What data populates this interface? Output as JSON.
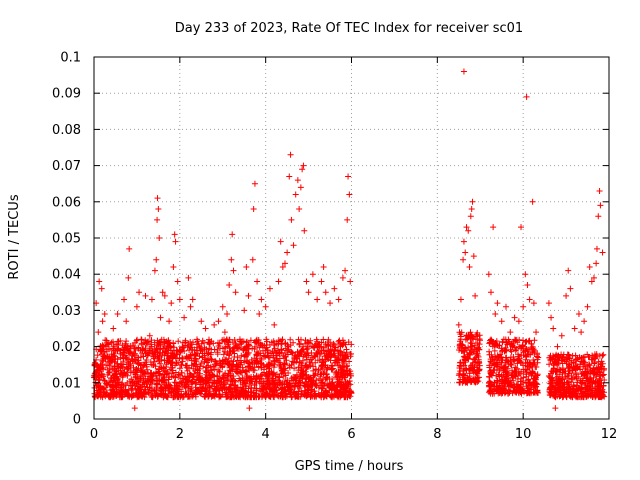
{
  "chart_data": {
    "type": "scatter",
    "title": "Day 233 of 2023, Rate Of TEC Index for receiver sc01",
    "xlabel": "GPS time / hours",
    "ylabel": "ROTI / TECUs",
    "xlim": [
      0,
      12
    ],
    "ylim": [
      0,
      0.1
    ],
    "xticks": [
      "0",
      "2",
      "4",
      "6",
      "8",
      "10",
      "12"
    ],
    "yticks": [
      "0",
      "0.01",
      "0.02",
      "0.03",
      "0.04",
      "0.05",
      "0.06",
      "0.07",
      "0.08",
      "0.09",
      "0.1"
    ],
    "grid": true,
    "marker": "+",
    "colors": {
      "points": "#ff0000",
      "grid": "#a0a0a0",
      "axis": "#000000"
    },
    "series": [
      {
        "name": "sc01",
        "points": [
          [
            0.05,
            0.032
          ],
          [
            0.1,
            0.024
          ],
          [
            0.12,
            0.038
          ],
          [
            0.18,
            0.036
          ],
          [
            0.2,
            0.027
          ],
          [
            0.25,
            0.029
          ],
          [
            0.3,
            0.021
          ],
          [
            0.35,
            0.017
          ],
          [
            0.45,
            0.025
          ],
          [
            0.55,
            0.029
          ],
          [
            0.62,
            0.018
          ],
          [
            0.7,
            0.033
          ],
          [
            0.75,
            0.027
          ],
          [
            0.8,
            0.039
          ],
          [
            0.82,
            0.047
          ],
          [
            0.9,
            0.016
          ],
          [
            0.95,
            0.003
          ],
          [
            1.0,
            0.031
          ],
          [
            1.05,
            0.035
          ],
          [
            1.1,
            0.022
          ],
          [
            1.2,
            0.034
          ],
          [
            1.3,
            0.023
          ],
          [
            1.35,
            0.033
          ],
          [
            1.42,
            0.041
          ],
          [
            1.45,
            0.044
          ],
          [
            1.47,
            0.055
          ],
          [
            1.48,
            0.061
          ],
          [
            1.5,
            0.058
          ],
          [
            1.52,
            0.05
          ],
          [
            1.55,
            0.028
          ],
          [
            1.6,
            0.035
          ],
          [
            1.65,
            0.034
          ],
          [
            1.72,
            0.006
          ],
          [
            1.75,
            0.027
          ],
          [
            1.8,
            0.032
          ],
          [
            1.85,
            0.042
          ],
          [
            1.88,
            0.051
          ],
          [
            1.9,
            0.049
          ],
          [
            1.95,
            0.038
          ],
          [
            2.0,
            0.033
          ],
          [
            2.1,
            0.028
          ],
          [
            2.2,
            0.039
          ],
          [
            2.25,
            0.031
          ],
          [
            2.3,
            0.033
          ],
          [
            2.4,
            0.022
          ],
          [
            2.5,
            0.027
          ],
          [
            2.6,
            0.025
          ],
          [
            2.7,
            0.021
          ],
          [
            2.8,
            0.026
          ],
          [
            2.9,
            0.027
          ],
          [
            3.0,
            0.031
          ],
          [
            3.05,
            0.024
          ],
          [
            3.1,
            0.029
          ],
          [
            3.15,
            0.037
          ],
          [
            3.2,
            0.044
          ],
          [
            3.22,
            0.051
          ],
          [
            3.25,
            0.041
          ],
          [
            3.3,
            0.035
          ],
          [
            3.4,
            0.022
          ],
          [
            3.5,
            0.03
          ],
          [
            3.55,
            0.042
          ],
          [
            3.6,
            0.034
          ],
          [
            3.62,
            0.003
          ],
          [
            3.7,
            0.044
          ],
          [
            3.72,
            0.058
          ],
          [
            3.75,
            0.065
          ],
          [
            3.8,
            0.038
          ],
          [
            3.85,
            0.029
          ],
          [
            3.9,
            0.033
          ],
          [
            4.0,
            0.031
          ],
          [
            4.1,
            0.036
          ],
          [
            4.2,
            0.026
          ],
          [
            4.3,
            0.038
          ],
          [
            4.35,
            0.049
          ],
          [
            4.4,
            0.042
          ],
          [
            4.45,
            0.043
          ],
          [
            4.5,
            0.046
          ],
          [
            4.55,
            0.067
          ],
          [
            4.58,
            0.073
          ],
          [
            4.6,
            0.055
          ],
          [
            4.65,
            0.048
          ],
          [
            4.7,
            0.062
          ],
          [
            4.75,
            0.066
          ],
          [
            4.78,
            0.058
          ],
          [
            4.82,
            0.064
          ],
          [
            4.85,
            0.069
          ],
          [
            4.88,
            0.07
          ],
          [
            4.9,
            0.052
          ],
          [
            4.95,
            0.038
          ],
          [
            5.0,
            0.035
          ],
          [
            5.1,
            0.04
          ],
          [
            5.2,
            0.033
          ],
          [
            5.3,
            0.038
          ],
          [
            5.35,
            0.042
          ],
          [
            5.4,
            0.035
          ],
          [
            5.5,
            0.032
          ],
          [
            5.6,
            0.036
          ],
          [
            5.7,
            0.033
          ],
          [
            5.8,
            0.039
          ],
          [
            5.85,
            0.041
          ],
          [
            5.9,
            0.055
          ],
          [
            5.92,
            0.067
          ],
          [
            5.95,
            0.062
          ],
          [
            5.97,
            0.038
          ],
          [
            8.5,
            0.026
          ],
          [
            8.55,
            0.033
          ],
          [
            8.6,
            0.044
          ],
          [
            8.62,
            0.049
          ],
          [
            8.65,
            0.046
          ],
          [
            8.68,
            0.053
          ],
          [
            8.72,
            0.052
          ],
          [
            8.75,
            0.042
          ],
          [
            8.78,
            0.056
          ],
          [
            8.8,
            0.058
          ],
          [
            8.82,
            0.06
          ],
          [
            8.85,
            0.045
          ],
          [
            8.88,
            0.034
          ],
          [
            8.9,
            0.022
          ],
          [
            8.62,
            0.096
          ],
          [
            9.2,
            0.04
          ],
          [
            9.25,
            0.035
          ],
          [
            9.3,
            0.053
          ],
          [
            9.35,
            0.029
          ],
          [
            9.4,
            0.032
          ],
          [
            9.5,
            0.027
          ],
          [
            9.55,
            0.022
          ],
          [
            9.6,
            0.031
          ],
          [
            9.7,
            0.024
          ],
          [
            9.8,
            0.028
          ],
          [
            9.9,
            0.027
          ],
          [
            9.95,
            0.053
          ],
          [
            10.0,
            0.031
          ],
          [
            10.05,
            0.04
          ],
          [
            10.08,
            0.089
          ],
          [
            10.1,
            0.037
          ],
          [
            10.15,
            0.033
          ],
          [
            10.22,
            0.06
          ],
          [
            10.25,
            0.032
          ],
          [
            10.3,
            0.024
          ],
          [
            10.35,
            0.017
          ],
          [
            10.6,
            0.032
          ],
          [
            10.65,
            0.028
          ],
          [
            10.7,
            0.025
          ],
          [
            10.75,
            0.003
          ],
          [
            10.8,
            0.02
          ],
          [
            10.9,
            0.023
          ],
          [
            11.0,
            0.034
          ],
          [
            11.05,
            0.041
          ],
          [
            11.1,
            0.036
          ],
          [
            11.2,
            0.025
          ],
          [
            11.3,
            0.029
          ],
          [
            11.35,
            0.024
          ],
          [
            11.42,
            0.027
          ],
          [
            11.5,
            0.031
          ],
          [
            11.55,
            0.042
          ],
          [
            11.6,
            0.038
          ],
          [
            11.65,
            0.039
          ],
          [
            11.7,
            0.043
          ],
          [
            11.72,
            0.047
          ],
          [
            11.75,
            0.056
          ],
          [
            11.78,
            0.063
          ],
          [
            11.8,
            0.059
          ],
          [
            11.85,
            0.046
          ]
        ]
      }
    ],
    "dense_bands": [
      {
        "x_start": 0.0,
        "x_end": 6.0,
        "y_low": 0.006,
        "y_high": 0.022
      },
      {
        "x_start": 8.5,
        "x_end": 9.0,
        "y_low": 0.01,
        "y_high": 0.024
      },
      {
        "x_start": 9.2,
        "x_end": 10.35,
        "y_low": 0.007,
        "y_high": 0.022
      },
      {
        "x_start": 10.6,
        "x_end": 11.9,
        "y_low": 0.006,
        "y_high": 0.018
      }
    ]
  }
}
